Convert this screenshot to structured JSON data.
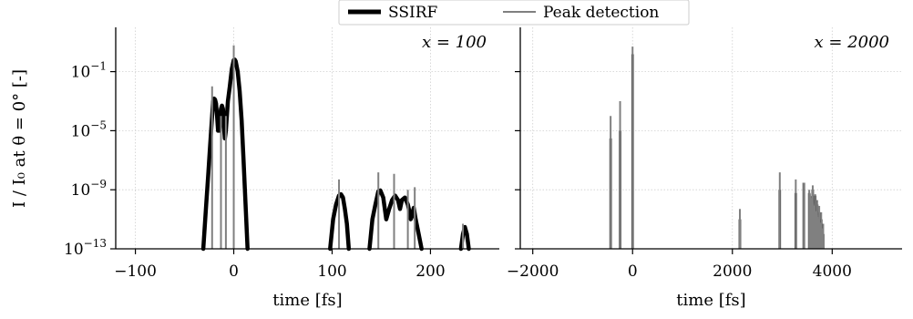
{
  "chart_data": {
    "type": "line",
    "ylabel": "I / I₀ at θ = 0° [-]",
    "yscale": "log",
    "ylim": [
      1e-13,
      100
    ],
    "yticks": [
      {
        "value": 1e-13,
        "base": "10",
        "exp": "−13"
      },
      {
        "value": 1e-09,
        "base": "10",
        "exp": "−9"
      },
      {
        "value": 1e-05,
        "base": "10",
        "exp": "−5"
      },
      {
        "value": 0.1,
        "base": "10",
        "exp": "−1"
      }
    ],
    "grid": true,
    "legend": {
      "placement": "top-center",
      "entries": [
        {
          "label": "SSIRF",
          "color": "#000000",
          "width": 5
        },
        {
          "label": "Peak detection",
          "color": "#808080",
          "width": 2
        }
      ]
    },
    "panels": [
      {
        "annotation": "x = 100",
        "xlabel": "time [fs]",
        "xlim": [
          -120,
          270
        ],
        "xticks": [
          {
            "value": -100,
            "label": "−100"
          },
          {
            "value": 0,
            "label": "0"
          },
          {
            "value": 100,
            "label": "100"
          },
          {
            "value": 200,
            "label": "200"
          }
        ],
        "series": [
          {
            "kind": "ssirf",
            "lobes": [
              {
                "points": [
                  [
                    -31,
                    1e-13
                  ],
                  [
                    -28,
                    1e-10
                  ],
                  [
                    -26,
                    1e-08
                  ],
                  [
                    -24,
                    1e-06
                  ],
                  [
                    -22,
                    0.0001
                  ],
                  [
                    -21,
                    0.001
                  ],
                  [
                    -20,
                    0.0015
                  ],
                  [
                    -19,
                    0.0013
                  ],
                  [
                    -18,
                    0.0007
                  ],
                  [
                    -17,
                    0.0001
                  ],
                  [
                    -16,
                    1e-05
                  ],
                  [
                    -15,
                    1e-05
                  ],
                  [
                    -14,
                    8e-05
                  ],
                  [
                    -13,
                    0.0003
                  ],
                  [
                    -12,
                    0.0005
                  ],
                  [
                    -11,
                    0.0003
                  ],
                  [
                    -10,
                    2e-05
                  ],
                  [
                    -9,
                    3e-06
                  ],
                  [
                    -8,
                    1e-05
                  ],
                  [
                    -6,
                    0.001
                  ],
                  [
                    -4,
                    0.01
                  ],
                  [
                    -2,
                    0.15
                  ],
                  [
                    0,
                    0.6
                  ],
                  [
                    1,
                    0.65
                  ],
                  [
                    2,
                    0.5
                  ],
                  [
                    4,
                    0.1
                  ],
                  [
                    6,
                    0.005
                  ],
                  [
                    8,
                    5e-05
                  ],
                  [
                    10,
                    1e-07
                  ],
                  [
                    12,
                    1e-10
                  ],
                  [
                    14,
                    1e-13
                  ]
                ]
              },
              {
                "points": [
                  [
                    98,
                    1e-13
                  ],
                  [
                    101,
                    1e-11
                  ],
                  [
                    104,
                    1e-10
                  ],
                  [
                    107,
                    4e-10
                  ],
                  [
                    109,
                    5e-10
                  ],
                  [
                    111,
                    3e-10
                  ],
                  [
                    113,
                    5e-11
                  ],
                  [
                    115,
                    5e-12
                  ],
                  [
                    117,
                    1e-13
                  ]
                ]
              },
              {
                "points": [
                  [
                    138,
                    1e-13
                  ],
                  [
                    141,
                    1e-11
                  ],
                  [
                    144,
                    1e-10
                  ],
                  [
                    147,
                    8e-10
                  ],
                  [
                    149,
                    9e-10
                  ],
                  [
                    152,
                    3e-10
                  ],
                  [
                    155,
                    1e-11
                  ],
                  [
                    158,
                    5e-11
                  ],
                  [
                    161,
                    2e-10
                  ],
                  [
                    164,
                    4e-10
                  ],
                  [
                    167,
                    2e-10
                  ],
                  [
                    169,
                    5e-11
                  ],
                  [
                    171,
                    2e-10
                  ],
                  [
                    174,
                    3e-10
                  ],
                  [
                    177,
                    1e-10
                  ],
                  [
                    178,
                    5e-11
                  ],
                  [
                    180,
                    1e-11
                  ],
                  [
                    183,
                    6e-11
                  ],
                  [
                    185,
                    1e-11
                  ],
                  [
                    188,
                    1e-12
                  ],
                  [
                    191,
                    1e-13
                  ]
                ]
              },
              {
                "points": [
                  [
                    231,
                    1e-13
                  ],
                  [
                    233,
                    1e-12
                  ],
                  [
                    235,
                    3e-12
                  ],
                  [
                    237,
                    1e-12
                  ],
                  [
                    239,
                    1e-13
                  ]
                ]
              }
            ]
          },
          {
            "kind": "peaks",
            "peaks": [
              [
                -22,
                0.01
              ],
              [
                -13,
                0.0001
              ],
              [
                -8,
                0.0001
              ],
              [
                0,
                6
              ],
              [
                107,
                5e-09
              ],
              [
                147,
                1.5e-08
              ],
              [
                163,
                1.2e-08
              ],
              [
                177,
                1e-09
              ],
              [
                184,
                1.5e-09
              ],
              [
                233,
                5e-12
              ]
            ]
          }
        ]
      },
      {
        "annotation": "x = 2000",
        "xlabel": "time [fs]",
        "xlim": [
          -2250,
          5400
        ],
        "xticks": [
          {
            "value": -2000,
            "label": "−2000"
          },
          {
            "value": 0,
            "label": "0"
          },
          {
            "value": 2000,
            "label": "2000"
          },
          {
            "value": 4000,
            "label": "4000"
          }
        ],
        "series": [
          {
            "kind": "ssirf",
            "bars": [
              [
                -440,
                3e-06
              ],
              [
                -250,
                1e-05
              ],
              [
                0,
                1.5
              ],
              [
                2150,
                1e-11
              ],
              [
                2950,
                1e-09
              ],
              [
                3270,
                6e-10
              ],
              [
                3430,
                3e-09
              ],
              [
                3540,
                6e-10
              ],
              [
                3610,
                1e-09
              ],
              [
                3660,
                4e-10
              ],
              [
                3700,
                1e-10
              ],
              [
                3740,
                3e-11
              ],
              [
                3780,
                1e-11
              ],
              [
                3820,
                1e-12
              ]
            ]
          },
          {
            "kind": "peaks",
            "peaks": [
              [
                -440,
                0.0001
              ],
              [
                -250,
                0.001
              ],
              [
                0,
                5
              ],
              [
                2150,
                5e-11
              ],
              [
                2950,
                1.5e-08
              ],
              [
                3270,
                5e-09
              ],
              [
                3430,
                3e-09
              ],
              [
                3540,
                1e-09
              ],
              [
                3610,
                2e-09
              ],
              [
                3660,
                5e-10
              ],
              [
                3700,
                2e-10
              ],
              [
                3740,
                8e-11
              ],
              [
                3780,
                3e-11
              ],
              [
                3820,
                5e-12
              ]
            ],
            "dense": {
              "from": 3560,
              "to": 3830,
              "count": 22,
              "start": 5e-10,
              "end": 1e-12
            }
          }
        ]
      }
    ]
  }
}
